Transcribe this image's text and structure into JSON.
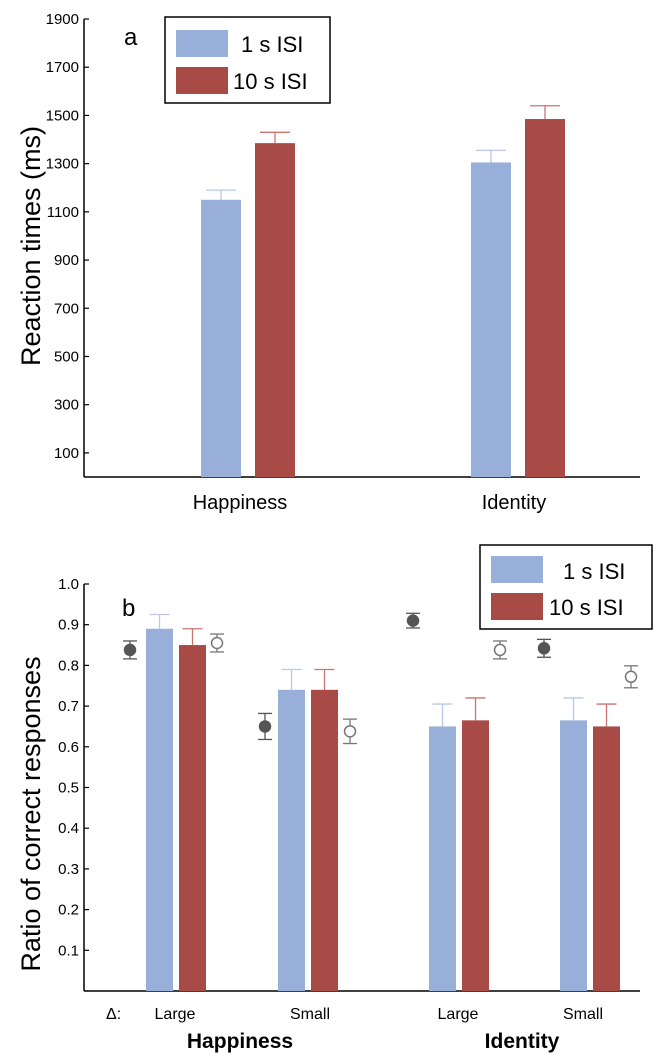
{
  "colors": {
    "isi_1s": "#98B0D9",
    "isi_10s": "#A84A46",
    "dot_filled": "#555555",
    "dot_open_edge": "#777777",
    "error_1s": "#B8C8E6",
    "error_10s": "#C87470"
  },
  "chart_data": [
    {
      "type": "bar",
      "panel": "a",
      "ylabel": "Reaction times (ms)",
      "ylim": [
        0,
        1900
      ],
      "yticks": [
        "100",
        "300",
        "500",
        "700",
        "900",
        "1100",
        "1300",
        "1500",
        "1700",
        "1900"
      ],
      "categories": [
        "Happiness",
        "Identity"
      ],
      "series": [
        {
          "name": "1 s ISI",
          "values": [
            1150,
            1305
          ],
          "errors": [
            40,
            50
          ]
        },
        {
          "name": "10 s ISI",
          "values": [
            1385,
            1485
          ],
          "errors": [
            45,
            55
          ]
        }
      ],
      "legend": {
        "placement": "top-left",
        "labels": [
          "1 s ISI",
          "10 s ISI"
        ]
      }
    },
    {
      "type": "bar",
      "panel": "b",
      "ylabel": "Ratio of correct responses",
      "ylim": [
        0,
        1.0
      ],
      "yticks": [
        "0.1",
        "0.2",
        "0.3",
        "0.4",
        "0.5",
        "0.6",
        "0.7",
        "0.8",
        "0.9",
        "1.0"
      ],
      "delta_label": "Δ:",
      "groups": [
        {
          "name": "Happiness",
          "subcategories": [
            "Large",
            "Small"
          ]
        },
        {
          "name": "Identity",
          "subcategories": [
            "Large",
            "Small"
          ]
        }
      ],
      "series": [
        {
          "name": "1 s ISI",
          "values": [
            0.89,
            0.74,
            0.65,
            0.665
          ],
          "errors": [
            0.035,
            0.05,
            0.055,
            0.055
          ]
        },
        {
          "name": "10 s ISI",
          "values": [
            0.85,
            0.74,
            0.665,
            0.65
          ],
          "errors": [
            0.04,
            0.05,
            0.055,
            0.055
          ]
        }
      ],
      "filled_markers": {
        "values": [
          0.838,
          0.65,
          0.91,
          0.842
        ],
        "errors": [
          0.022,
          0.032,
          0.018,
          0.022
        ]
      },
      "open_markers": {
        "values": [
          0.855,
          0.638,
          0.838,
          0.772
        ],
        "errors": [
          0.022,
          0.03,
          0.022,
          0.027
        ]
      },
      "legend": {
        "placement": "top-right",
        "labels": [
          "1 s ISI",
          "10 s ISI"
        ]
      }
    }
  ]
}
